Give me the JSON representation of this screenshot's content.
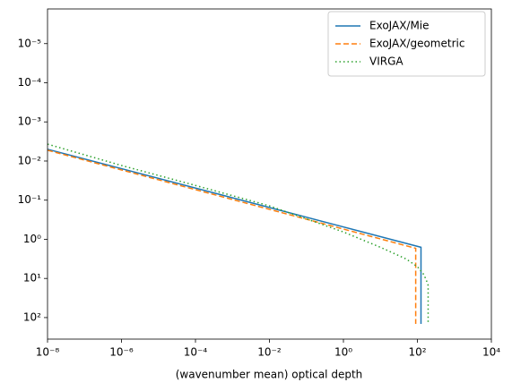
{
  "chart_data": {
    "type": "line",
    "xlabel": "(wavenumber mean) optical depth",
    "xscale": "log",
    "yscale": "log",
    "xlim": [
      1e-08,
      10000
    ],
    "ylim": [
      355,
      1.3e-06
    ],
    "xticks": [
      {
        "value": 1e-08,
        "label": "10⁻⁸"
      },
      {
        "value": 1e-06,
        "label": "10⁻⁶"
      },
      {
        "value": 0.0001,
        "label": "10⁻⁴"
      },
      {
        "value": 0.01,
        "label": "10⁻²"
      },
      {
        "value": 1,
        "label": "10⁰"
      },
      {
        "value": 100,
        "label": "10²"
      },
      {
        "value": 10000,
        "label": "10⁴"
      }
    ],
    "yticks": [
      {
        "value": 1e-05,
        "label": "10⁻⁵"
      },
      {
        "value": 0.0001,
        "label": "10⁻⁴"
      },
      {
        "value": 0.001,
        "label": "10⁻³"
      },
      {
        "value": 0.01,
        "label": "10⁻²"
      },
      {
        "value": 0.1,
        "label": "10⁻¹"
      },
      {
        "value": 1,
        "label": "10⁰"
      },
      {
        "value": 10,
        "label": "10¹"
      },
      {
        "value": 100,
        "label": "10²"
      }
    ],
    "legend": "upper right",
    "series": [
      {
        "name": "ExoJAX/Mie",
        "color": "#1f77b4",
        "linestyle": "solid",
        "x": [
          1e-08,
          125,
          125
        ],
        "values": [
          0.005,
          1.6,
          145
        ]
      },
      {
        "name": "ExoJAX/geometric",
        "color": "#ff7f0e",
        "linestyle": "dashed",
        "x": [
          1e-08,
          90,
          90
        ],
        "values": [
          0.0053,
          1.7,
          145
        ]
      },
      {
        "name": "VIRGA",
        "color": "#2ca02c",
        "linestyle": "dotted",
        "x": [
          1e-08,
          1e-06,
          0.0001,
          0.01,
          0.1,
          1,
          10,
          50,
          100,
          150,
          180,
          195,
          195
        ],
        "values": [
          0.0037,
          0.013,
          0.042,
          0.14,
          0.3,
          0.65,
          1.6,
          3.2,
          5,
          8,
          12,
          15,
          145
        ]
      }
    ]
  }
}
